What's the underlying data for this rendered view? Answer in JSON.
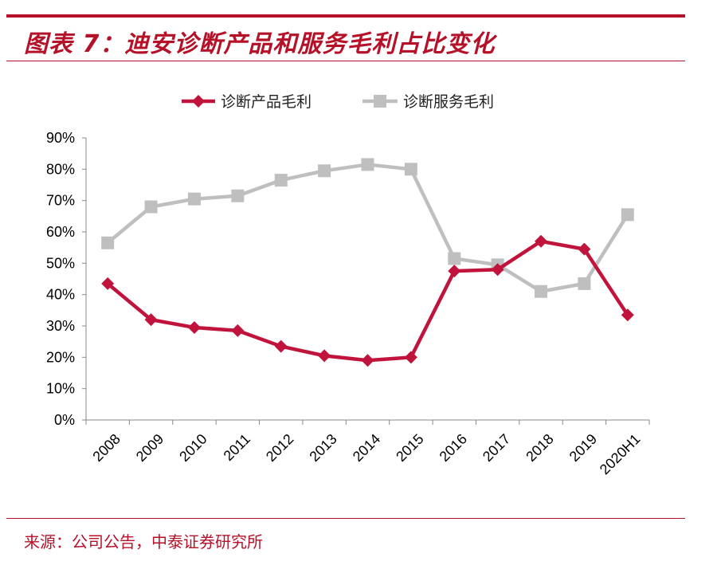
{
  "header": {
    "title": "图表 7：迪安诊断产品和服务毛利占比变化"
  },
  "footer": {
    "source": "来源：公司公告，中泰证券研究所"
  },
  "colors": {
    "accent": "#b5122a",
    "product": "#c0143c",
    "service": "#bfbfbf"
  },
  "chart_data": {
    "type": "line",
    "categories": [
      "2008",
      "2009",
      "2010",
      "2011",
      "2012",
      "2013",
      "2014",
      "2015",
      "2016",
      "2017",
      "2018",
      "2019",
      "2020H1"
    ],
    "series": [
      {
        "name": "诊断产品毛利",
        "marker": "diamond",
        "values": [
          43.5,
          32,
          29.5,
          28.5,
          23.5,
          20.5,
          19,
          20,
          47.5,
          48,
          57,
          54.5,
          33.5
        ]
      },
      {
        "name": "诊断服务毛利",
        "marker": "square",
        "values": [
          56.5,
          68,
          70.5,
          71.5,
          76.5,
          79.5,
          81.5,
          80,
          51.5,
          49.5,
          41,
          43.5,
          65.5
        ]
      }
    ],
    "yticks": [
      "0%",
      "10%",
      "20%",
      "30%",
      "40%",
      "50%",
      "60%",
      "70%",
      "80%",
      "90%"
    ],
    "ylim": [
      0,
      90
    ],
    "legend_position": "top",
    "grid": false
  }
}
